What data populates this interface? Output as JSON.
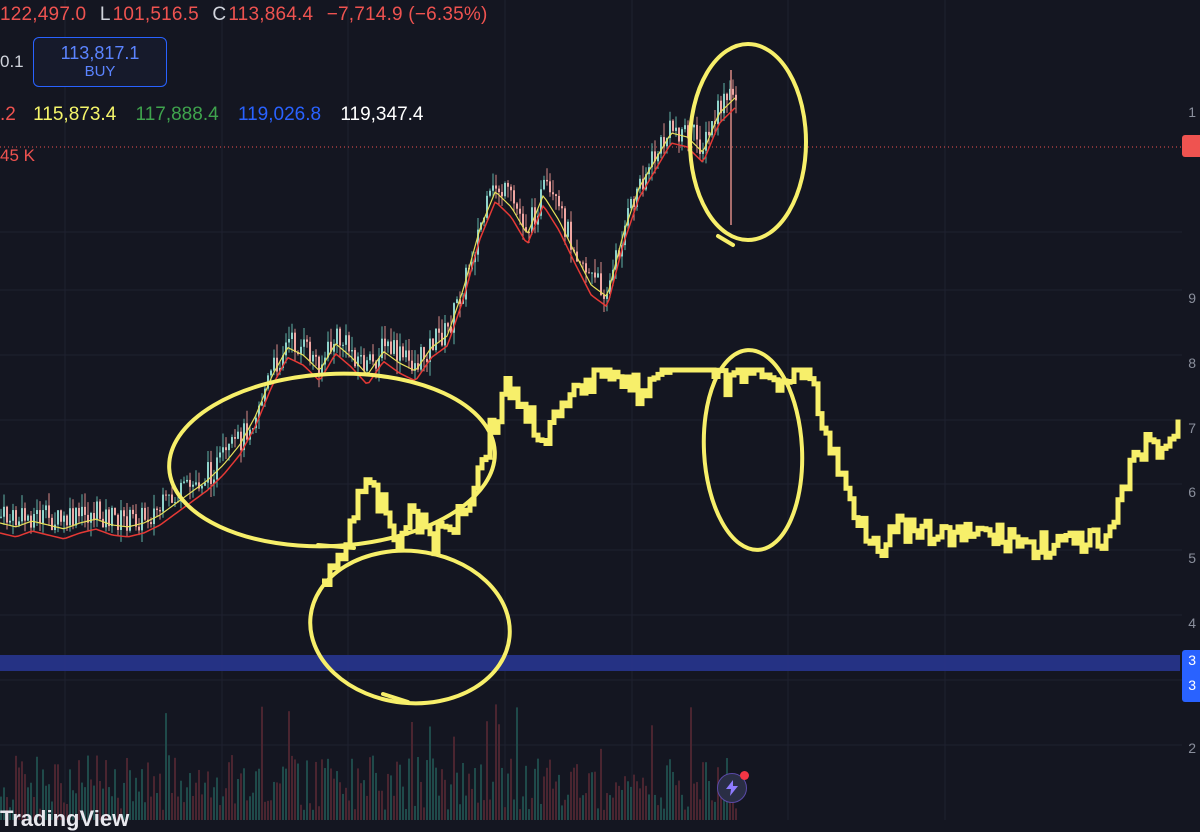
{
  "ohlc": {
    "high": "122,497.0",
    "low_label": "L",
    "low": "101,516.5",
    "close_label": "C",
    "close": "113,864.4",
    "change": "−7,714.9 (−6.35%)"
  },
  "left_edge": {
    "step_value": "0.1",
    "ma_fragment": ".2",
    "volume": "45 K"
  },
  "buy_button": {
    "price": "113,817.1",
    "label": "BUY"
  },
  "moving_averages": [
    {
      "value": "115,873.4",
      "color": "#f5f56a"
    },
    {
      "value": "117,888.4",
      "color": "#3fa34d"
    },
    {
      "value": "119,026.8",
      "color": "#2962ff"
    },
    {
      "value": "119,347.4",
      "color": "#ffffff"
    }
  ],
  "axis_ticks": [
    "1",
    "9",
    "8",
    "7",
    "6",
    "5",
    "4",
    "3",
    "3",
    "2"
  ],
  "colors": {
    "background": "#141621",
    "candle_up": "#26a69a",
    "candle_down": "#ef5350",
    "annotation": "#f7ef6a",
    "support_band": "#27358f",
    "price_line": "#ef5350"
  },
  "icons": {
    "bolt": "lightning-bolt-icon"
  },
  "watermark": "TradingView",
  "chart_data": {
    "type": "line",
    "title": "",
    "xlabel": "",
    "ylabel": "",
    "grid": true,
    "series": [
      {
        "name": "",
        "values": [
          100,
          98,
          101,
          99,
          97,
          100,
          102,
          99,
          98,
          100,
          104,
          110,
          116,
          122,
          130,
          140,
          155,
          175,
          190,
          186,
          178,
          192,
          185,
          176,
          188,
          182,
          178,
          190,
          196,
          220,
          250,
          270,
          262,
          248,
          268,
          255,
          238,
          222,
          216,
          248,
          272,
          286,
          300,
          298,
          290,
          310,
          318
        ],
        "color": "#e3a6a0"
      },
      {
        "name": "",
        "values": [
          95,
          110,
          150,
          142,
          120,
          135,
          118,
          130,
          148,
          182,
          210,
          192,
          180,
          195,
          208,
          222,
          218,
          205,
          212,
          230,
          240,
          218,
          208,
          224,
          206,
          218,
          222,
          180,
          150,
          128,
          118,
          126,
          120,
          124,
          118,
          125,
          120,
          122,
          114,
          118,
          115,
          120,
          112,
          150,
          175,
          172,
          184
        ],
        "color": "#f7ef6a"
      }
    ]
  }
}
